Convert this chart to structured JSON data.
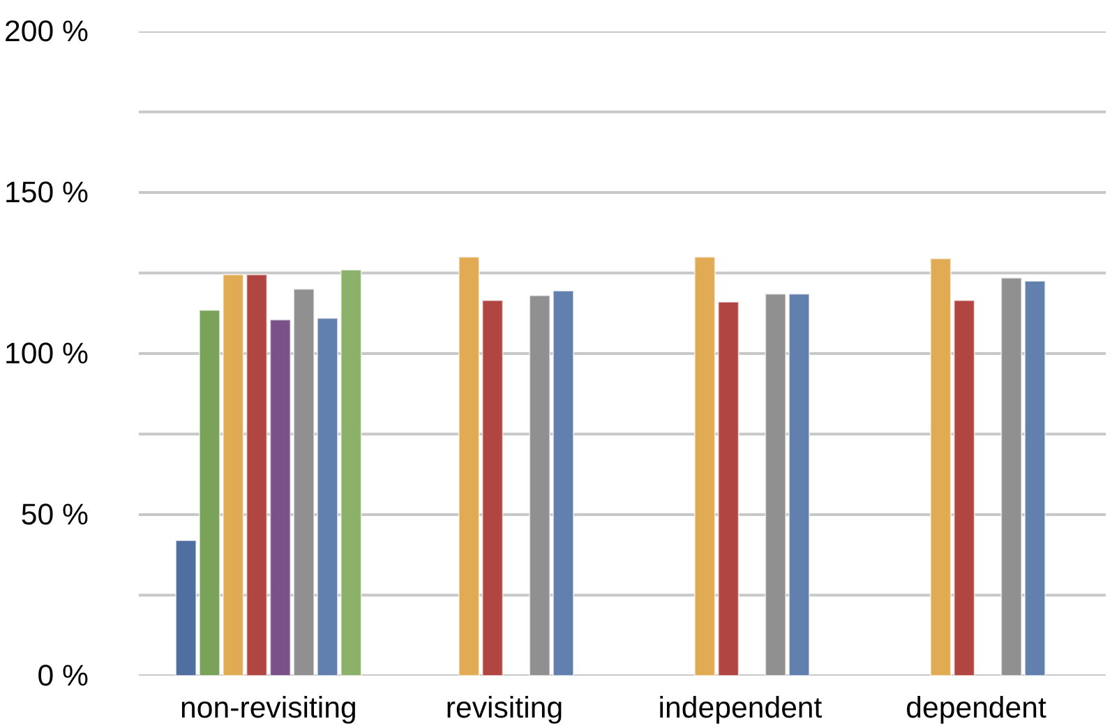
{
  "chart_data": {
    "type": "bar",
    "categories": [
      "non-revisiting",
      "revisiting",
      "independent",
      "dependent"
    ],
    "series": [
      {
        "color": "#4f6fa0",
        "values": [
          42,
          null,
          null,
          null
        ]
      },
      {
        "color": "#7aa35a",
        "values": [
          113.5,
          null,
          null,
          null
        ]
      },
      {
        "color": "#e0ab52",
        "values": [
          124.5,
          130,
          130,
          129.5
        ]
      },
      {
        "color": "#b04541",
        "values": [
          124.5,
          116.5,
          116,
          116.5
        ]
      },
      {
        "color": "#7a5189",
        "values": [
          110.5,
          null,
          null,
          null
        ]
      },
      {
        "color": "#8f908f",
        "values": [
          120,
          118,
          118.5,
          123.5
        ]
      },
      {
        "color": "#6280ae",
        "values": [
          111,
          119.5,
          118.5,
          122.5
        ]
      },
      {
        "color": "#8cb16b",
        "values": [
          126,
          null,
          null,
          null
        ]
      }
    ],
    "ylim": [
      0,
      200
    ],
    "yticks": [
      {
        "value": 0,
        "label": "0 %"
      },
      {
        "value": 25,
        "label": null
      },
      {
        "value": 50,
        "label": "50 %"
      },
      {
        "value": 75,
        "label": null
      },
      {
        "value": 100,
        "label": "100 %"
      },
      {
        "value": 125,
        "label": null
      },
      {
        "value": 150,
        "label": "150 %"
      },
      {
        "value": 175,
        "label": null
      },
      {
        "value": 200,
        "label": "200 %"
      }
    ],
    "grid": "y"
  }
}
